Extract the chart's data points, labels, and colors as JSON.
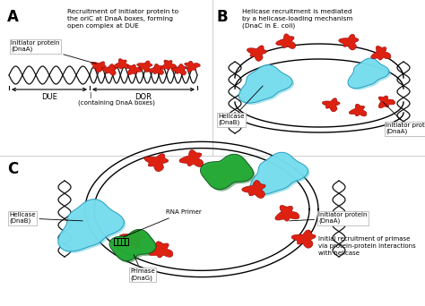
{
  "background_color": "#ffffff",
  "colors": {
    "red_protein": "#dd2211",
    "cyan_helicase": "#55ccdd",
    "cyan_helicase2": "#77ddee",
    "green_primase": "#22aa33",
    "dna_dark": "#111111",
    "dna_gray": "#999999",
    "white": "#ffffff",
    "black": "#000000"
  },
  "panel_A": {
    "label": "A",
    "title": "Recruitment of initiator protein to\nthe oriC at DnaA boxes, forming\nopen complex at DUE",
    "initiator_label": "Initiator protein\n(DnaA)",
    "due_label": "DUE",
    "dor_label": "DOR",
    "dna_boxes_label": "(containing DnaA boxes)"
  },
  "panel_B": {
    "label": "B",
    "title": "Helicase recruitment is mediated\nby a helicase-loading mechanism\n(DnaC in E. coli)",
    "helicase_label": "Helicase\n(DnaB)",
    "initiator_label": "Initiator protein\n(DnaA)"
  },
  "panel_C": {
    "label": "C",
    "helicase_label": "Helicase\n(DnaB)",
    "rna_primer_label": "RNA Primer",
    "primase_label": "Primase\n(DnaG)",
    "initiator_label": "Initiator protein\n(DnaA)",
    "recruitment_label": "Initial recruitment of primase\nvia protein-protein interactions\nwith helicase"
  }
}
